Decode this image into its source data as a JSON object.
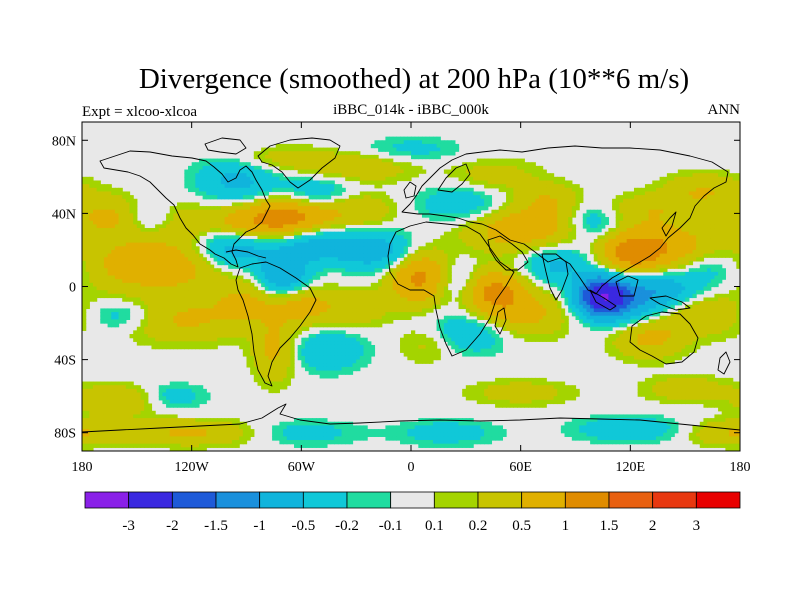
{
  "chart_data": {
    "type": "heatmap",
    "title": "Divergence (smoothed) at 200 hPa (10**6 m/s)",
    "left_label": "Expt = xlcoo-xlcoa",
    "center_label": "iBBC_014k - iBBC_000k",
    "right_label": "ANN",
    "x_axis": {
      "range": [
        -180,
        180
      ],
      "ticks": [
        -180,
        -120,
        -60,
        0,
        60,
        120,
        180
      ],
      "tick_labels": [
        "180",
        "120W",
        "60W",
        "0",
        "60E",
        "120E",
        "180"
      ]
    },
    "y_axis": {
      "range": [
        -90,
        90
      ],
      "ticks": [
        80,
        40,
        0,
        -40,
        -80
      ],
      "tick_labels": [
        "80N",
        "40N",
        "0",
        "40S",
        "80S"
      ]
    },
    "colorbar": {
      "levels": [
        "-3",
        "-2",
        "-1.5",
        "-1",
        "-0.5",
        "-0.2",
        "-0.1",
        "0.1",
        "0.2",
        "0.5",
        "1",
        "1.5",
        "2",
        "3"
      ],
      "colors": [
        "#8a20e8",
        "#3a28e0",
        "#1e5ad8",
        "#1a90dc",
        "#10b4dc",
        "#10c8d8",
        "#20dca0",
        "#e8e8e8",
        "#a4d400",
        "#c8c400",
        "#e0b000",
        "#e08c00",
        "#e86010",
        "#e83810",
        "#e80000"
      ]
    },
    "field": {
      "description": "approximate smoothed anomaly blobs",
      "blobs": [
        {
          "lon": -140,
          "lat": 12,
          "a": 0.9,
          "sx": 28,
          "sy": 10
        },
        {
          "lon": -125,
          "lat": -18,
          "a": 0.55,
          "sx": 24,
          "sy": 9
        },
        {
          "lon": -160,
          "lat": -16,
          "a": -0.45,
          "sx": 14,
          "sy": 6
        },
        {
          "lon": -165,
          "lat": 38,
          "a": 0.6,
          "sx": 14,
          "sy": 8
        },
        {
          "lon": -145,
          "lat": 38,
          "a": -0.35,
          "sx": 10,
          "sy": 6
        },
        {
          "lon": -120,
          "lat": 36,
          "a": 0.35,
          "sx": 14,
          "sy": 8
        },
        {
          "lon": -95,
          "lat": 58,
          "a": -0.6,
          "sx": 16,
          "sy": 10
        },
        {
          "lon": -90,
          "lat": 36,
          "a": 0.8,
          "sx": 12,
          "sy": 7
        },
        {
          "lon": -72,
          "lat": 38,
          "a": 1.0,
          "sx": 10,
          "sy": 8
        },
        {
          "lon": -55,
          "lat": 38,
          "a": 0.7,
          "sx": 10,
          "sy": 6
        },
        {
          "lon": -30,
          "lat": 42,
          "a": 0.55,
          "sx": 14,
          "sy": 7
        },
        {
          "lon": -50,
          "lat": 52,
          "a": -0.45,
          "sx": 16,
          "sy": 7
        },
        {
          "lon": -30,
          "lat": 65,
          "a": 0.45,
          "sx": 22,
          "sy": 6
        },
        {
          "lon": -75,
          "lat": 70,
          "a": 0.35,
          "sx": 20,
          "sy": 5
        },
        {
          "lon": -100,
          "lat": 20,
          "a": -0.8,
          "sx": 14,
          "sy": 8
        },
        {
          "lon": -70,
          "lat": 5,
          "a": -1.0,
          "sx": 10,
          "sy": 8
        },
        {
          "lon": -50,
          "lat": 22,
          "a": -0.7,
          "sx": 22,
          "sy": 7
        },
        {
          "lon": -60,
          "lat": -10,
          "a": 0.7,
          "sx": 12,
          "sy": 8
        },
        {
          "lon": -75,
          "lat": -35,
          "a": 0.6,
          "sx": 8,
          "sy": 12
        },
        {
          "lon": -90,
          "lat": -8,
          "a": 0.5,
          "sx": 12,
          "sy": 8
        },
        {
          "lon": -45,
          "lat": -35,
          "a": -0.5,
          "sx": 14,
          "sy": 8
        },
        {
          "lon": -30,
          "lat": -12,
          "a": 0.45,
          "sx": 12,
          "sy": 7
        },
        {
          "lon": -15,
          "lat": 18,
          "a": -0.6,
          "sx": 14,
          "sy": 8
        },
        {
          "lon": 5,
          "lat": 5,
          "a": 1.2,
          "sx": 12,
          "sy": 10
        },
        {
          "lon": 25,
          "lat": 2,
          "a": -0.55,
          "sx": 10,
          "sy": 8
        },
        {
          "lon": 45,
          "lat": -2,
          "a": 1.1,
          "sx": 12,
          "sy": 8
        },
        {
          "lon": 30,
          "lat": -25,
          "a": -0.6,
          "sx": 18,
          "sy": 8
        },
        {
          "lon": 60,
          "lat": -15,
          "a": 0.7,
          "sx": 18,
          "sy": 9
        },
        {
          "lon": 10,
          "lat": -30,
          "a": 0.4,
          "sx": 12,
          "sy": 8
        },
        {
          "lon": 30,
          "lat": 45,
          "a": -0.5,
          "sx": 18,
          "sy": 8
        },
        {
          "lon": 60,
          "lat": 32,
          "a": 0.85,
          "sx": 22,
          "sy": 9
        },
        {
          "lon": 45,
          "lat": 60,
          "a": 0.35,
          "sx": 18,
          "sy": 7
        },
        {
          "lon": 75,
          "lat": 48,
          "a": 0.4,
          "sx": 12,
          "sy": 6
        },
        {
          "lon": 80,
          "lat": 12,
          "a": -0.6,
          "sx": 14,
          "sy": 8
        },
        {
          "lon": 100,
          "lat": 35,
          "a": -0.5,
          "sx": 10,
          "sy": 7
        },
        {
          "lon": 105,
          "lat": -5,
          "a": -2.4,
          "sx": 9,
          "sy": 7
        },
        {
          "lon": 115,
          "lat": -10,
          "a": -0.8,
          "sx": 16,
          "sy": 8
        },
        {
          "lon": 120,
          "lat": 18,
          "a": 1.0,
          "sx": 12,
          "sy": 8
        },
        {
          "lon": 140,
          "lat": 22,
          "a": 0.8,
          "sx": 18,
          "sy": 9
        },
        {
          "lon": 130,
          "lat": 42,
          "a": 0.4,
          "sx": 16,
          "sy": 6
        },
        {
          "lon": 135,
          "lat": -2,
          "a": -0.8,
          "sx": 16,
          "sy": 7
        },
        {
          "lon": 130,
          "lat": -28,
          "a": 0.6,
          "sx": 14,
          "sy": 8
        },
        {
          "lon": 160,
          "lat": -15,
          "a": 0.5,
          "sx": 18,
          "sy": 8
        },
        {
          "lon": 165,
          "lat": 10,
          "a": -0.4,
          "sx": 14,
          "sy": 7
        },
        {
          "lon": 160,
          "lat": 52,
          "a": 0.5,
          "sx": 16,
          "sy": 7
        },
        {
          "lon": -160,
          "lat": -62,
          "a": 0.45,
          "sx": 18,
          "sy": 6
        },
        {
          "lon": -130,
          "lat": -60,
          "a": -0.4,
          "sx": 12,
          "sy": 5
        },
        {
          "lon": -120,
          "lat": -80,
          "a": 0.55,
          "sx": 28,
          "sy": 5
        },
        {
          "lon": -60,
          "lat": -80,
          "a": -0.35,
          "sx": 22,
          "sy": 5
        },
        {
          "lon": 20,
          "lat": -80,
          "a": -0.35,
          "sx": 20,
          "sy": 5
        },
        {
          "lon": 120,
          "lat": -78,
          "a": -0.45,
          "sx": 22,
          "sy": 5
        },
        {
          "lon": 175,
          "lat": -80,
          "a": 0.5,
          "sx": 18,
          "sy": 5
        },
        {
          "lon": 60,
          "lat": -58,
          "a": 0.35,
          "sx": 20,
          "sy": 5
        },
        {
          "lon": 150,
          "lat": -56,
          "a": 0.4,
          "sx": 16,
          "sy": 5
        },
        {
          "lon": 0,
          "lat": 75,
          "a": -0.3,
          "sx": 20,
          "sy": 5
        }
      ]
    }
  }
}
